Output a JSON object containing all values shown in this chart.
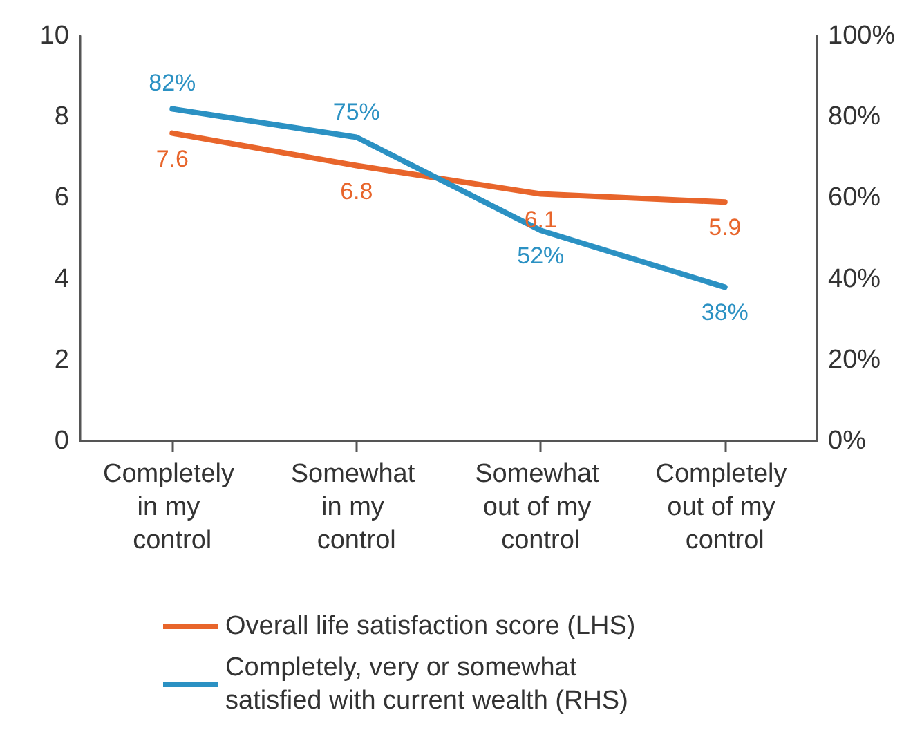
{
  "chart_data": {
    "type": "line",
    "categories": [
      "Completely in my control",
      "Somewhat in my control",
      "Somewhat out of my control",
      "Completely out of my control"
    ],
    "series": [
      {
        "name": "Overall life satisfaction score (LHS)",
        "color": "#e8652b",
        "values": [
          7.6,
          6.8,
          6.1,
          5.9
        ],
        "value_labels": [
          "7.6",
          "6.8",
          "6.1",
          "5.9"
        ]
      },
      {
        "name": "Completely, very or somewhat satisfied with current wealth (RHS)",
        "color": "#2b91c3",
        "axis": "y2",
        "values": [
          82,
          75,
          52,
          38
        ],
        "value_labels": [
          "82%",
          "75%",
          "52%",
          "38%"
        ]
      }
    ],
    "ylim": [
      0,
      10
    ],
    "yticks": [
      0,
      2,
      4,
      6,
      8,
      10
    ],
    "y2lim": [
      0,
      100
    ],
    "y2ticks": [
      {
        "value": 0,
        "label": "0%"
      },
      {
        "value": 20,
        "label": "20%"
      },
      {
        "value": 40,
        "label": "40%"
      },
      {
        "value": 60,
        "label": "60%"
      },
      {
        "value": 80,
        "label": "80%"
      },
      {
        "value": 100,
        "label": "100%"
      }
    ],
    "grid": false,
    "legend": "bottom",
    "marker": "none",
    "line_style": "solid"
  }
}
